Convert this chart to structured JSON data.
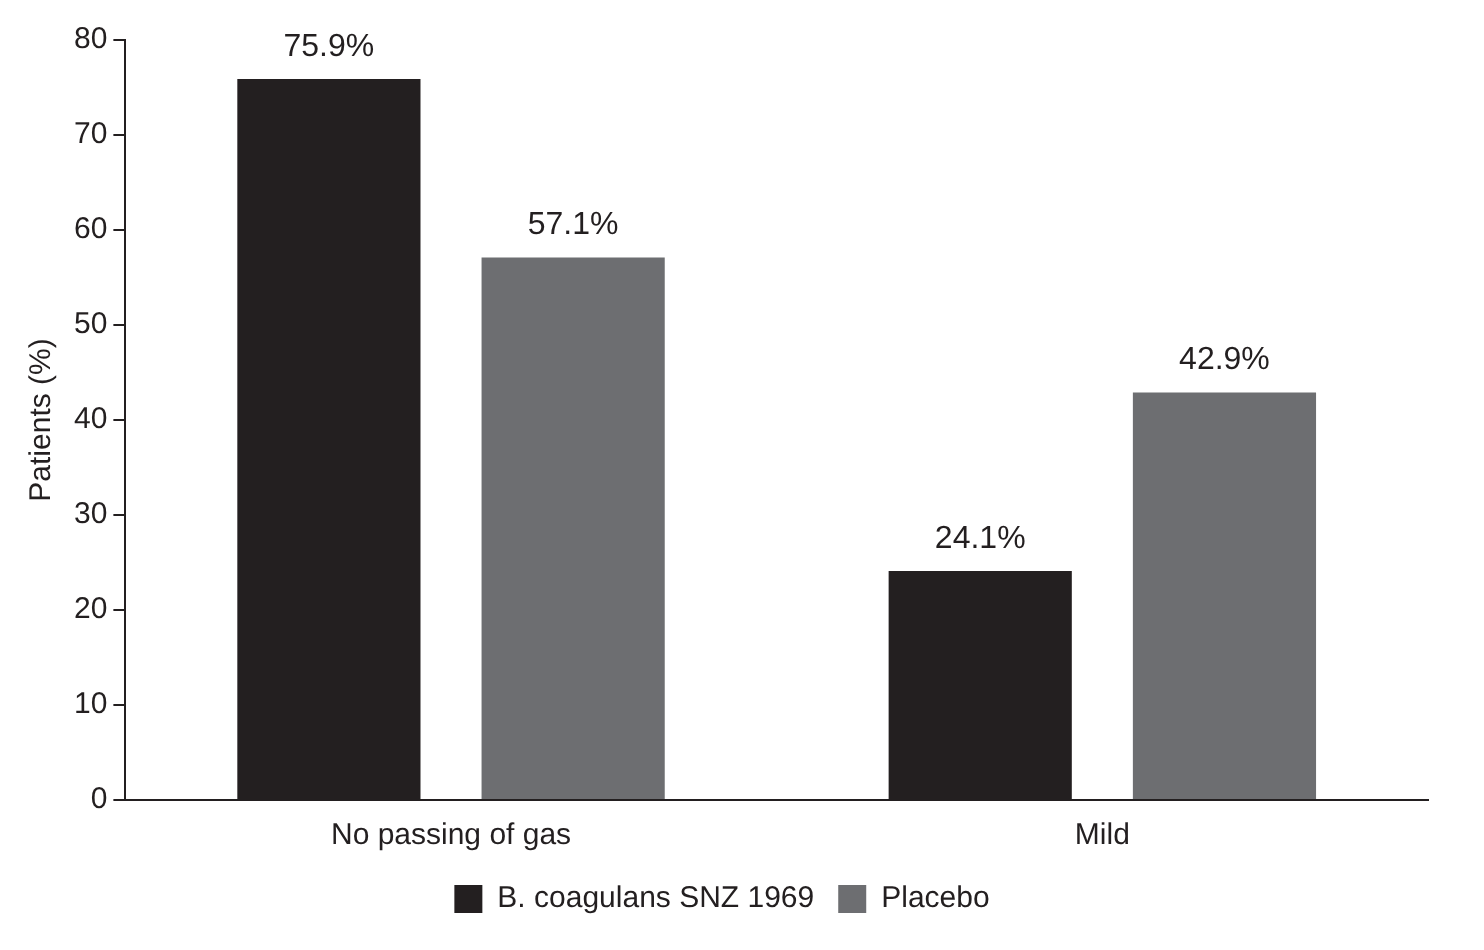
{
  "chart_data": {
    "type": "bar",
    "ylabel": "Patients (%)",
    "categories": [
      "No passing of gas",
      "Mild"
    ],
    "series": [
      {
        "name": "B. coagulans SNZ 1969",
        "color": "#231f20",
        "values": [
          75.9,
          24.1
        ],
        "value_labels": [
          "75.9%",
          "24.1%"
        ]
      },
      {
        "name": "Placebo",
        "color": "#6d6e71",
        "values": [
          57.1,
          42.9
        ],
        "value_labels": [
          "57.1%",
          "42.9%"
        ]
      }
    ],
    "ylim": [
      0,
      80
    ],
    "yticks": [
      0,
      10,
      20,
      30,
      40,
      50,
      60,
      70,
      80
    ],
    "grid": false,
    "legend": "bottom"
  }
}
